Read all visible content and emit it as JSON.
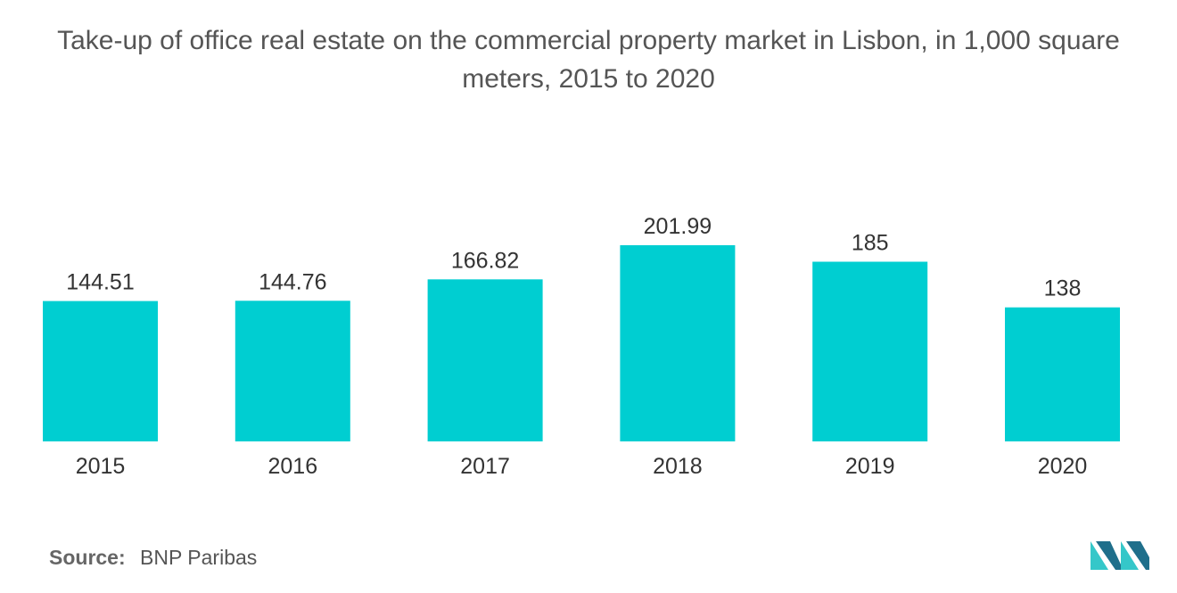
{
  "chart_data": {
    "type": "bar",
    "title": "Take-up of office real estate on the commercial property market in Lisbon, in 1,000 square meters, 2015 to 2020",
    "categories": [
      "2015",
      "2016",
      "2017",
      "2018",
      "2019",
      "2020"
    ],
    "values": [
      144.51,
      144.76,
      166.82,
      201.99,
      185,
      138
    ],
    "value_labels": [
      "144.51",
      "144.76",
      "166.82",
      "201.99",
      "185",
      "138"
    ],
    "xlabel": "",
    "ylabel": "",
    "ylim": [
      0,
      201.99
    ],
    "grid": false,
    "legend": "none",
    "bar_color": "#00CED1"
  },
  "footer": {
    "source_label": "Source:",
    "source_value": "BNP Paribas"
  },
  "colors": {
    "text": "#555555",
    "logo_dark": "#1F6F8B",
    "logo_light": "#35C7C9"
  },
  "icons": {
    "logo": "brand-logo-icon"
  }
}
